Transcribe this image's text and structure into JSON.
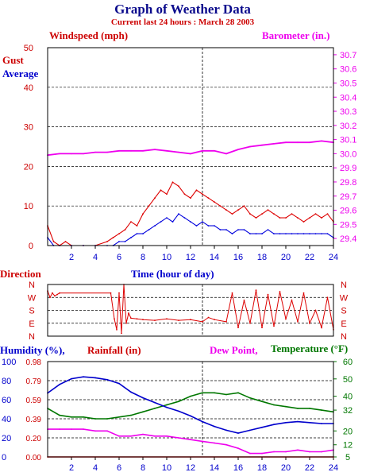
{
  "header": {
    "title": "Graph of Weather Data",
    "subtitle": "Current last 24 hours : March 28 2003"
  },
  "chart_data": [
    {
      "type": "line",
      "labels": {
        "left_axis": "Windspeed (mph)",
        "right_axis": "Barometer (in.)",
        "xlabel": "Time (hour of day)"
      },
      "legend": {
        "gust": "Gust",
        "average": "Average"
      },
      "x_ticks": [
        "2",
        "4",
        "6",
        "8",
        "10",
        "12",
        "14",
        "16",
        "18",
        "20",
        "22",
        "24"
      ],
      "ylim_left": [
        0,
        50
      ],
      "y_ticks_left": [
        "0",
        "10",
        "20",
        "30",
        "40",
        "50"
      ],
      "ylim_right": [
        29.35,
        30.75
      ],
      "y_ticks_right": [
        "29.4",
        "29.5",
        "29.6",
        "29.7",
        "29.8",
        "29.9",
        "30.0",
        "30.1",
        "30.2",
        "30.3",
        "30.4",
        "30.5",
        "30.6",
        "30.7"
      ],
      "series": [
        {
          "name": "Gust",
          "color": "#dd0000",
          "x": [
            0,
            0.5,
            1,
            1.5,
            2,
            3,
            4,
            5,
            5.5,
            6,
            6.5,
            7,
            7.5,
            8,
            8.5,
            9,
            9.5,
            10,
            10.5,
            11,
            11.5,
            12,
            12.5,
            13,
            13.5,
            14,
            14.5,
            15,
            15.5,
            16,
            16.5,
            17,
            17.5,
            18,
            18.5,
            19,
            19.5,
            20,
            20.5,
            21,
            21.5,
            22,
            22.5,
            23,
            23.5,
            24
          ],
          "y": [
            5,
            1,
            0,
            1,
            0,
            0,
            0,
            1,
            2,
            3,
            4,
            6,
            5,
            8,
            10,
            12,
            14,
            13,
            16,
            15,
            13,
            12,
            14,
            13,
            12,
            11,
            10,
            9,
            8,
            9,
            10,
            8,
            7,
            8,
            9,
            8,
            7,
            7,
            8,
            7,
            6,
            7,
            8,
            7,
            8,
            6
          ]
        },
        {
          "name": "Average",
          "color": "#0000dd",
          "x": [
            0,
            0.5,
            1,
            2,
            3,
            4,
            5,
            5.5,
            6,
            6.5,
            7,
            7.5,
            8,
            8.5,
            9,
            9.5,
            10,
            10.5,
            11,
            11.5,
            12,
            12.5,
            13,
            13.5,
            14,
            14.5,
            15,
            15.5,
            16,
            16.5,
            17,
            17.5,
            18,
            18.5,
            19,
            19.5,
            20,
            20.5,
            21,
            21.5,
            22,
            22.5,
            23,
            23.5,
            24
          ],
          "y": [
            2,
            0,
            0,
            0,
            0,
            0,
            0,
            0,
            1,
            1,
            2,
            3,
            3,
            4,
            5,
            6,
            7,
            6,
            8,
            7,
            6,
            5,
            6,
            5,
            5,
            4,
            4,
            3,
            4,
            4,
            3,
            3,
            3,
            4,
            3,
            3,
            3,
            3,
            3,
            3,
            3,
            3,
            3,
            3,
            2
          ]
        },
        {
          "name": "Barometer",
          "color": "#ee00ee",
          "x": [
            0,
            1,
            2,
            3,
            4,
            5,
            6,
            7,
            8,
            9,
            10,
            11,
            12,
            13,
            14,
            15,
            16,
            17,
            18,
            19,
            20,
            21,
            22,
            23,
            24
          ],
          "y": [
            29.99,
            30.0,
            30.0,
            30.0,
            30.01,
            30.01,
            30.02,
            30.02,
            30.02,
            30.03,
            30.02,
            30.01,
            30.0,
            30.02,
            30.02,
            30.0,
            30.03,
            30.05,
            30.06,
            30.07,
            30.08,
            30.08,
            30.08,
            30.09,
            30.08
          ]
        }
      ]
    },
    {
      "type": "line",
      "labels": {
        "title": "Direction"
      },
      "y_ticks": [
        "N",
        "W",
        "S",
        "E",
        "N"
      ],
      "series": [
        {
          "name": "Direction",
          "color": "#dd0000",
          "x": [
            0,
            0.2,
            0.4,
            0.6,
            0.8,
            1,
            5.3,
            5.6,
            5.8,
            6,
            6.2,
            6.4,
            6.6,
            6.8,
            7,
            7.5,
            8,
            9,
            10,
            11,
            12,
            13,
            13.5,
            14,
            15,
            15.5,
            16,
            16.5,
            17,
            17.5,
            18,
            18.5,
            19,
            19.5,
            20,
            20.5,
            21,
            21.5,
            22,
            22.5,
            23,
            23.5,
            24
          ],
          "y": [
            315,
            270,
            300,
            280,
            290,
            300,
            300,
            120,
            45,
            300,
            20,
            360,
            90,
            160,
            125,
            120,
            115,
            110,
            120,
            110,
            115,
            100,
            130,
            115,
            100,
            300,
            60,
            250,
            90,
            320,
            60,
            290,
            70,
            310,
            120,
            250,
            100,
            300,
            90,
            180,
            60,
            270,
            45
          ]
        }
      ]
    },
    {
      "type": "line",
      "labels": {
        "humidity": "Humidity (%),",
        "rainfall": "Rainfall (in)",
        "dewpoint": "Dew Point,",
        "temperature": "Temperature (°F)"
      },
      "x_ticks": [
        "2",
        "4",
        "6",
        "8",
        "10",
        "12",
        "14",
        "16",
        "18",
        "20",
        "22",
        "24"
      ],
      "ylim_humidity": [
        0,
        100
      ],
      "y_ticks_humidity": [
        "0",
        "20",
        "40",
        "60",
        "80",
        "100"
      ],
      "y_ticks_rain": [
        "0.00",
        "0.20",
        "0.39",
        "0.59",
        "0.79",
        "0.98"
      ],
      "ylim_temperature": [
        5,
        60
      ],
      "y_ticks_temperature": [
        "5",
        "12",
        "20",
        "32",
        "40",
        "50",
        "60"
      ],
      "series": [
        {
          "name": "Temperature",
          "color": "#007700",
          "x": [
            0,
            1,
            2,
            3,
            4,
            5,
            6,
            7,
            8,
            9,
            10,
            11,
            12,
            13,
            14,
            15,
            16,
            17,
            18,
            19,
            20,
            21,
            22,
            23,
            24
          ],
          "y": [
            33,
            29,
            28,
            28,
            27,
            27,
            28,
            29,
            31,
            33,
            35,
            37,
            40,
            42,
            42,
            41,
            42,
            39,
            37,
            35,
            34,
            33,
            33,
            32,
            31
          ]
        },
        {
          "name": "Humidity",
          "color": "#0000cc",
          "x": [
            0,
            1,
            2,
            3,
            4,
            5,
            6,
            7,
            8,
            9,
            10,
            11,
            12,
            13,
            14,
            15,
            16,
            17,
            18,
            19,
            20,
            21,
            22,
            23,
            24
          ],
          "y": [
            67,
            76,
            82,
            84,
            83,
            81,
            77,
            68,
            62,
            57,
            52,
            48,
            43,
            37,
            32,
            28,
            25,
            28,
            31,
            34,
            36,
            37,
            36,
            35,
            35
          ]
        },
        {
          "name": "Dew Point",
          "color": "#ee00ee",
          "x": [
            0,
            1,
            2,
            3,
            4,
            5,
            6,
            7,
            8,
            9,
            10,
            11,
            12,
            13,
            14,
            15,
            16,
            17,
            18,
            19,
            20,
            21,
            22,
            23,
            24
          ],
          "y": [
            21,
            21,
            21,
            21,
            20,
            20,
            17,
            17,
            18,
            17,
            17,
            16,
            15,
            14,
            13,
            12,
            10,
            7,
            7,
            8,
            8,
            9,
            8,
            8,
            9
          ]
        },
        {
          "name": "Rainfall",
          "color": "#dd0000",
          "x": [
            0,
            24
          ],
          "y": [
            0.0,
            0.0
          ]
        }
      ]
    }
  ]
}
